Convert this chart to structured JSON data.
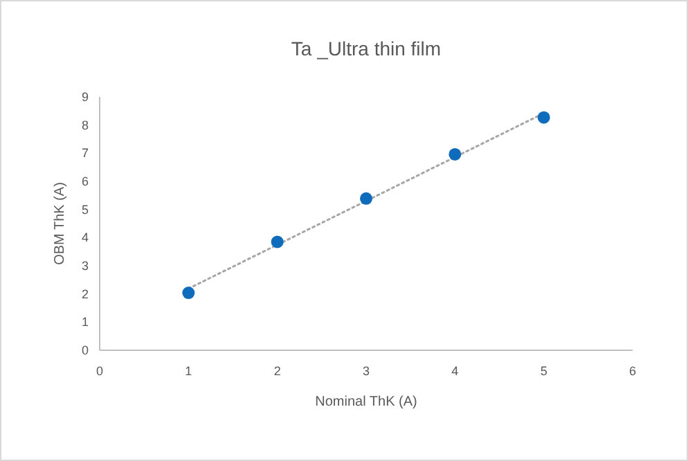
{
  "chart_data": {
    "type": "scatter",
    "title": "Ta _Ultra thin film",
    "xlabel": "Nominal ThK (A)",
    "ylabel": "OBM ThK (A)",
    "x": [
      1,
      2,
      3,
      4,
      5
    ],
    "series": [
      {
        "color": "#0f6cbd",
        "values": [
          2.04,
          3.85,
          5.39,
          6.96,
          8.27
        ],
        "marker": "circle"
      },
      {
        "type": "line",
        "color": "#a6a6a6",
        "x": [
          1,
          5
        ],
        "values": [
          2.19,
          8.42
        ],
        "line_style": "dotted",
        "marker": "none"
      }
    ],
    "xlim": [
      0,
      6
    ],
    "xticks": [
      0,
      1,
      2,
      3,
      4,
      5,
      6
    ],
    "ylim": [
      0,
      9
    ],
    "yticks": [
      0,
      1,
      2,
      3,
      4,
      5,
      6,
      7,
      8,
      9
    ],
    "grid": false
  }
}
